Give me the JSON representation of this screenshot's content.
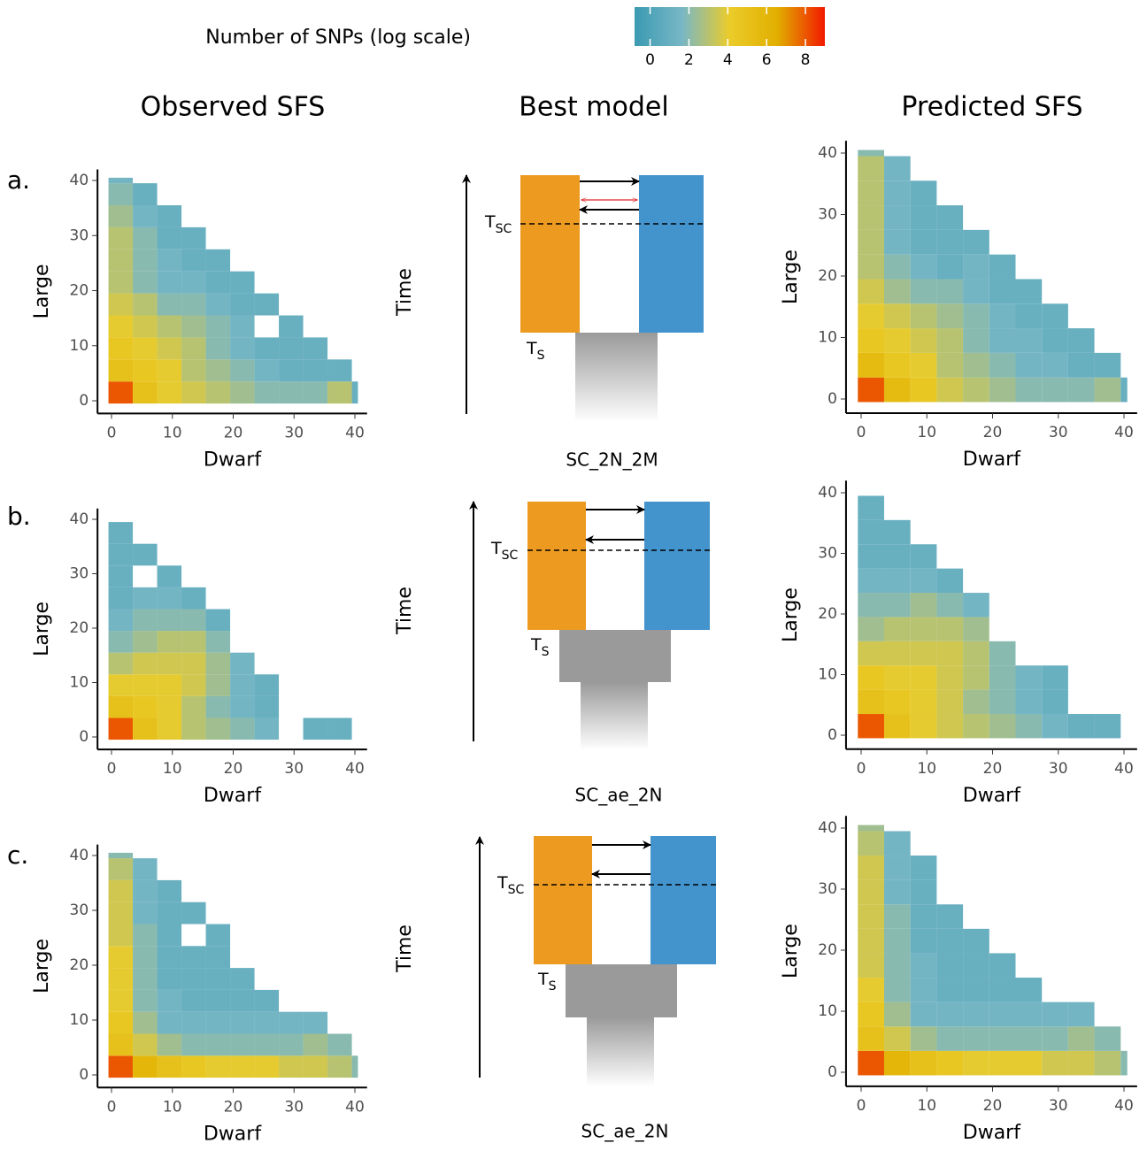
{
  "colorbar": {
    "title": "Number of SNPs (log scale)",
    "lim": [
      -0.8,
      9
    ],
    "ticks": [
      0,
      2,
      4,
      6,
      8
    ],
    "colors": [
      "#3B9AB2",
      "#78B7C5",
      "#EBCC2A",
      "#E1AF00",
      "#F21A00"
    ]
  },
  "column_titles": [
    "Observed SFS",
    "Best model",
    "Predicted SFS"
  ],
  "models": [
    {
      "panel_label": "a.",
      "time_label": "Time",
      "t_sc": "T",
      "t_sc_sub": "SC",
      "t_s": "T",
      "t_s_sub": "S",
      "name": "SC_2N_2M"
    },
    {
      "panel_label": "b.",
      "time_label": "Time",
      "t_sc": "T",
      "t_sc_sub": "SC",
      "t_s": "T",
      "t_s_sub": "S",
      "name": "SC_ae_2N"
    },
    {
      "panel_label": "c.",
      "time_label": "Time",
      "t_sc": "T",
      "t_sc_sub": "SC",
      "t_s": "T",
      "t_s_sub": "S",
      "name": "SC_ae_2N"
    }
  ],
  "chart_data": [
    {
      "type": "heatmap",
      "x_label": "Dwarf",
      "y_label": "Large",
      "x": [
        0,
        4,
        8,
        12,
        16,
        20,
        24,
        28,
        32,
        36,
        40
      ],
      "y": [
        0,
        4,
        8,
        12,
        16,
        20,
        24,
        28,
        32,
        36,
        40
      ],
      "xlim": [
        -2.3,
        42
      ],
      "ylim": [
        -2.3,
        42
      ],
      "xticks": [
        0,
        10,
        20,
        30,
        40
      ],
      "yticks": [
        0,
        10,
        20,
        30,
        40
      ],
      "values": [
        [
          8,
          5,
          4,
          3.5,
          3,
          2.5,
          2,
          2,
          2,
          3,
          1
        ],
        [
          5,
          4.5,
          4,
          3,
          2.5,
          2,
          1.5,
          1,
          1,
          1,
          null
        ],
        [
          4.5,
          4,
          3.5,
          3,
          2,
          1.5,
          1,
          1,
          1,
          null,
          null
        ],
        [
          4,
          3.5,
          3,
          2.5,
          2,
          1.5,
          null,
          1,
          null,
          null,
          null
        ],
        [
          3.5,
          3,
          2,
          2,
          1.5,
          1,
          1,
          null,
          null,
          null,
          null
        ],
        [
          3,
          2,
          1.5,
          1.5,
          1,
          1,
          null,
          null,
          null,
          null,
          null
        ],
        [
          3,
          2,
          1.5,
          1,
          1,
          null,
          null,
          null,
          null,
          null,
          null
        ],
        [
          3,
          2,
          1,
          1,
          null,
          null,
          null,
          null,
          null,
          null,
          null
        ],
        [
          2.5,
          1.5,
          1,
          null,
          null,
          null,
          null,
          null,
          null,
          null,
          null
        ],
        [
          2,
          1,
          null,
          null,
          null,
          null,
          null,
          null,
          null,
          null,
          null
        ],
        [
          1.5,
          null,
          null,
          null,
          null,
          null,
          null,
          null,
          null,
          null,
          null
        ]
      ]
    },
    {
      "type": "heatmap",
      "x_label": "Dwarf",
      "y_label": "Large",
      "x": [
        0,
        4,
        8,
        12,
        16,
        20,
        24,
        28,
        32,
        36,
        40
      ],
      "y": [
        0,
        4,
        8,
        12,
        16,
        20,
        24,
        28,
        32,
        36,
        40
      ],
      "xlim": [
        -2.3,
        42
      ],
      "ylim": [
        -2.3,
        42
      ],
      "xticks": [
        0,
        10,
        20,
        30,
        40
      ],
      "yticks": [
        0,
        10,
        20,
        30,
        40
      ],
      "values": [
        [
          8,
          5.5,
          4.5,
          3.5,
          3,
          2.5,
          2,
          2,
          2,
          2.5,
          1
        ],
        [
          5.5,
          4.5,
          4,
          3,
          2.5,
          2,
          1.5,
          1.5,
          1,
          1,
          null
        ],
        [
          4.5,
          4,
          3.5,
          3,
          2,
          1.5,
          1.5,
          1,
          1,
          null,
          null
        ],
        [
          4,
          3.5,
          3,
          2.5,
          2,
          1.5,
          1,
          1,
          null,
          null,
          null
        ],
        [
          3.5,
          2.5,
          2,
          2,
          1.5,
          1,
          1,
          null,
          null,
          null,
          null
        ],
        [
          3,
          2,
          1.5,
          1,
          1.5,
          1,
          null,
          null,
          null,
          null,
          null
        ],
        [
          3,
          1.5,
          1,
          1,
          1,
          null,
          null,
          null,
          null,
          null,
          null
        ],
        [
          3,
          1.5,
          1,
          1,
          null,
          null,
          null,
          null,
          null,
          null,
          null
        ],
        [
          3,
          1.5,
          1,
          null,
          null,
          null,
          null,
          null,
          null,
          null,
          null
        ],
        [
          3,
          1.5,
          null,
          null,
          null,
          null,
          null,
          null,
          null,
          null,
          null
        ],
        [
          2,
          null,
          null,
          null,
          null,
          null,
          null,
          null,
          null,
          null,
          null
        ]
      ]
    },
    {
      "type": "heatmap",
      "x_label": "Dwarf",
      "y_label": "Large",
      "x": [
        0,
        4,
        8,
        12,
        16,
        20,
        24,
        28,
        32,
        36,
        40
      ],
      "y": [
        0,
        4,
        8,
        12,
        16,
        20,
        24,
        28,
        32,
        36,
        40
      ],
      "xlim": [
        -2.3,
        42
      ],
      "ylim": [
        -2.3,
        42
      ],
      "xticks": [
        0,
        10,
        20,
        30,
        40
      ],
      "yticks": [
        0,
        10,
        20,
        30,
        40
      ],
      "values": [
        [
          8,
          5,
          4,
          3,
          2.5,
          2,
          1.5,
          null,
          1,
          1,
          null
        ],
        [
          5,
          4.5,
          4,
          3,
          2,
          1.5,
          1,
          null,
          null,
          null,
          null
        ],
        [
          4,
          4,
          4,
          3.5,
          2.5,
          1.5,
          1,
          null,
          null,
          null,
          null
        ],
        [
          3,
          3.5,
          3.5,
          3.5,
          2.5,
          1.5,
          null,
          null,
          null,
          null,
          null
        ],
        [
          2,
          2.5,
          3,
          3,
          2,
          null,
          null,
          null,
          null,
          null,
          null
        ],
        [
          1.5,
          2,
          2,
          2,
          1,
          null,
          null,
          null,
          null,
          null,
          null
        ],
        [
          1,
          1.5,
          1.5,
          1,
          null,
          null,
          null,
          null,
          null,
          null,
          null
        ],
        [
          1,
          null,
          1,
          null,
          null,
          null,
          null,
          null,
          null,
          null,
          null
        ],
        [
          1,
          1,
          null,
          null,
          null,
          null,
          null,
          null,
          null,
          null,
          null
        ],
        [
          1,
          null,
          null,
          null,
          null,
          null,
          null,
          null,
          null,
          null,
          null
        ],
        [
          null,
          null,
          null,
          null,
          null,
          null,
          null,
          null,
          null,
          null,
          null
        ]
      ]
    },
    {
      "type": "heatmap",
      "x_label": "Dwarf",
      "y_label": "Large",
      "x": [
        0,
        4,
        8,
        12,
        16,
        20,
        24,
        28,
        32,
        36,
        40
      ],
      "y": [
        0,
        4,
        8,
        12,
        16,
        20,
        24,
        28,
        32,
        36,
        40
      ],
      "xlim": [
        -2.3,
        42
      ],
      "ylim": [
        -2.3,
        42
      ],
      "xticks": [
        0,
        10,
        20,
        30,
        40
      ],
      "yticks": [
        0,
        10,
        20,
        30,
        40
      ],
      "values": [
        [
          8,
          5,
          4,
          3.5,
          3,
          2.5,
          2,
          1.5,
          1,
          1,
          null
        ],
        [
          5,
          4.5,
          4,
          3.5,
          2.5,
          2,
          1.5,
          1,
          null,
          null,
          null
        ],
        [
          4.5,
          4,
          4,
          3.5,
          3,
          2,
          1.5,
          1,
          null,
          null,
          null
        ],
        [
          3.5,
          3.5,
          3.5,
          3.5,
          3,
          2,
          null,
          null,
          null,
          null,
          null
        ],
        [
          2.5,
          3,
          3,
          3,
          2.5,
          null,
          null,
          null,
          null,
          null,
          null
        ],
        [
          2,
          2,
          2.5,
          2,
          1.5,
          null,
          null,
          null,
          null,
          null,
          null
        ],
        [
          1.5,
          1.5,
          1.5,
          1,
          null,
          null,
          null,
          null,
          null,
          null,
          null
        ],
        [
          1,
          1,
          1,
          null,
          null,
          null,
          null,
          null,
          null,
          null,
          null
        ],
        [
          1,
          1,
          null,
          null,
          null,
          null,
          null,
          null,
          null,
          null,
          null
        ],
        [
          1,
          null,
          null,
          null,
          null,
          null,
          null,
          null,
          null,
          null,
          null
        ],
        [
          null,
          null,
          null,
          null,
          null,
          null,
          null,
          null,
          null,
          null,
          null
        ]
      ]
    },
    {
      "type": "heatmap",
      "x_label": "Dwarf",
      "y_label": "Large",
      "x": [
        0,
        4,
        8,
        12,
        16,
        20,
        24,
        28,
        32,
        36,
        40
      ],
      "y": [
        0,
        4,
        8,
        12,
        16,
        20,
        24,
        28,
        32,
        36,
        40
      ],
      "xlim": [
        -2.3,
        42
      ],
      "ylim": [
        -2.3,
        42
      ],
      "xticks": [
        0,
        10,
        20,
        30,
        40
      ],
      "yticks": [
        0,
        10,
        20,
        30,
        40
      ],
      "values": [
        [
          8,
          6,
          5,
          4.5,
          4,
          4,
          4,
          3.5,
          3.5,
          3,
          2
        ],
        [
          5,
          3.5,
          2.5,
          2,
          2,
          2,
          2,
          2,
          2.5,
          2,
          null
        ],
        [
          4.5,
          2.5,
          1.5,
          1.5,
          1.5,
          1.5,
          1.5,
          1.5,
          1.5,
          null,
          null
        ],
        [
          4,
          2,
          1.5,
          1,
          1,
          1,
          1,
          null,
          null,
          null,
          null
        ],
        [
          4,
          2,
          1,
          1,
          1,
          1,
          null,
          null,
          null,
          null,
          null
        ],
        [
          4,
          2,
          1,
          1,
          1,
          null,
          null,
          null,
          null,
          null,
          null
        ],
        [
          3.5,
          2,
          1,
          null,
          1,
          null,
          null,
          null,
          null,
          null,
          null
        ],
        [
          3.5,
          1.5,
          1,
          1,
          null,
          null,
          null,
          null,
          null,
          null,
          null
        ],
        [
          3.5,
          1.5,
          1,
          null,
          null,
          null,
          null,
          null,
          null,
          null,
          null
        ],
        [
          3,
          1.5,
          null,
          null,
          null,
          null,
          null,
          null,
          null,
          null,
          null
        ],
        [
          2,
          null,
          null,
          null,
          null,
          null,
          null,
          null,
          null,
          null,
          null
        ]
      ]
    },
    {
      "type": "heatmap",
      "x_label": "Dwarf",
      "y_label": "Large",
      "x": [
        0,
        4,
        8,
        12,
        16,
        20,
        24,
        28,
        32,
        36,
        40
      ],
      "y": [
        0,
        4,
        8,
        12,
        16,
        20,
        24,
        28,
        32,
        36,
        40
      ],
      "xlim": [
        -2.3,
        42
      ],
      "ylim": [
        -2.3,
        42
      ],
      "xticks": [
        0,
        10,
        20,
        30,
        40
      ],
      "yticks": [
        0,
        10,
        20,
        30,
        40
      ],
      "values": [
        [
          8,
          6,
          5,
          4.5,
          4,
          4,
          4,
          3.5,
          3.5,
          3,
          2
        ],
        [
          5,
          3.5,
          2.5,
          2,
          2,
          2,
          2,
          2,
          2.5,
          2,
          null
        ],
        [
          4.5,
          2.5,
          1.5,
          1.5,
          1.5,
          1.5,
          1.5,
          1.5,
          1.5,
          null,
          null
        ],
        [
          4,
          2,
          1.5,
          1,
          1,
          1,
          1,
          null,
          null,
          null,
          null
        ],
        [
          3.5,
          2,
          1.5,
          1,
          1,
          1,
          null,
          null,
          null,
          null,
          null
        ],
        [
          3.5,
          2,
          1,
          1,
          1,
          null,
          null,
          null,
          null,
          null,
          null
        ],
        [
          3.5,
          2,
          1,
          1,
          null,
          null,
          null,
          null,
          null,
          null,
          null
        ],
        [
          3.5,
          1.5,
          1,
          null,
          null,
          null,
          null,
          null,
          null,
          null,
          null
        ],
        [
          3.5,
          1.5,
          1,
          null,
          null,
          null,
          null,
          null,
          null,
          null,
          null
        ],
        [
          3,
          1.5,
          null,
          null,
          null,
          null,
          null,
          null,
          null,
          null,
          null
        ],
        [
          2.5,
          null,
          null,
          null,
          null,
          null,
          null,
          null,
          null,
          null,
          null
        ]
      ]
    }
  ]
}
